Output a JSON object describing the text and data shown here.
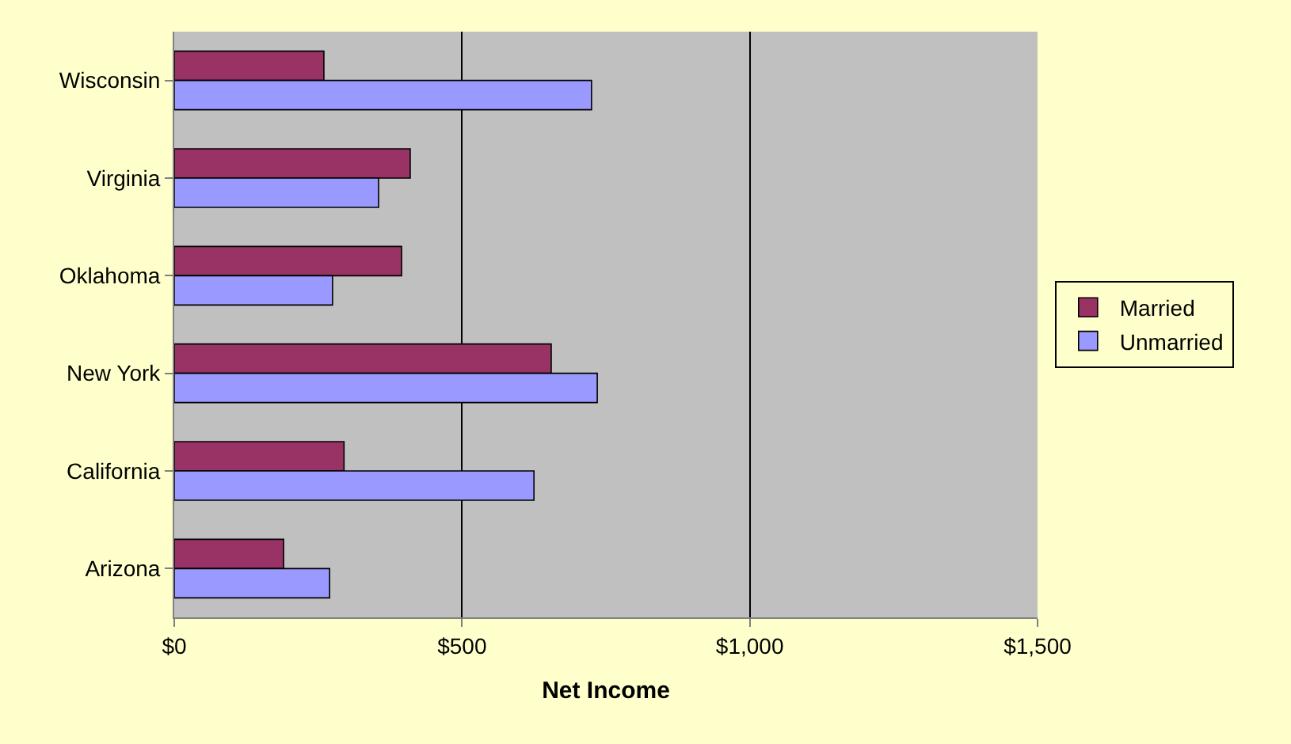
{
  "chart_data": {
    "type": "bar",
    "orientation": "horizontal",
    "xlabel": "Net Income",
    "categories": [
      "Wisconsin",
      "Virginia",
      "Oklahoma",
      "New York",
      "California",
      "Arizona"
    ],
    "series": [
      {
        "name": "Married",
        "color": "#993366",
        "values": [
          260,
          410,
          395,
          655,
          295,
          190
        ]
      },
      {
        "name": "Unmarried",
        "color": "#9999ff",
        "values": [
          725,
          355,
          275,
          735,
          625,
          270
        ]
      }
    ],
    "xlim": [
      0,
      1500
    ],
    "xticks": [
      {
        "value": 0,
        "label": "$0"
      },
      {
        "value": 500,
        "label": "$500"
      },
      {
        "value": 1000,
        "label": "$1,000"
      },
      {
        "value": 1500,
        "label": "$1,500"
      }
    ],
    "grid": "x",
    "legend": "right"
  }
}
